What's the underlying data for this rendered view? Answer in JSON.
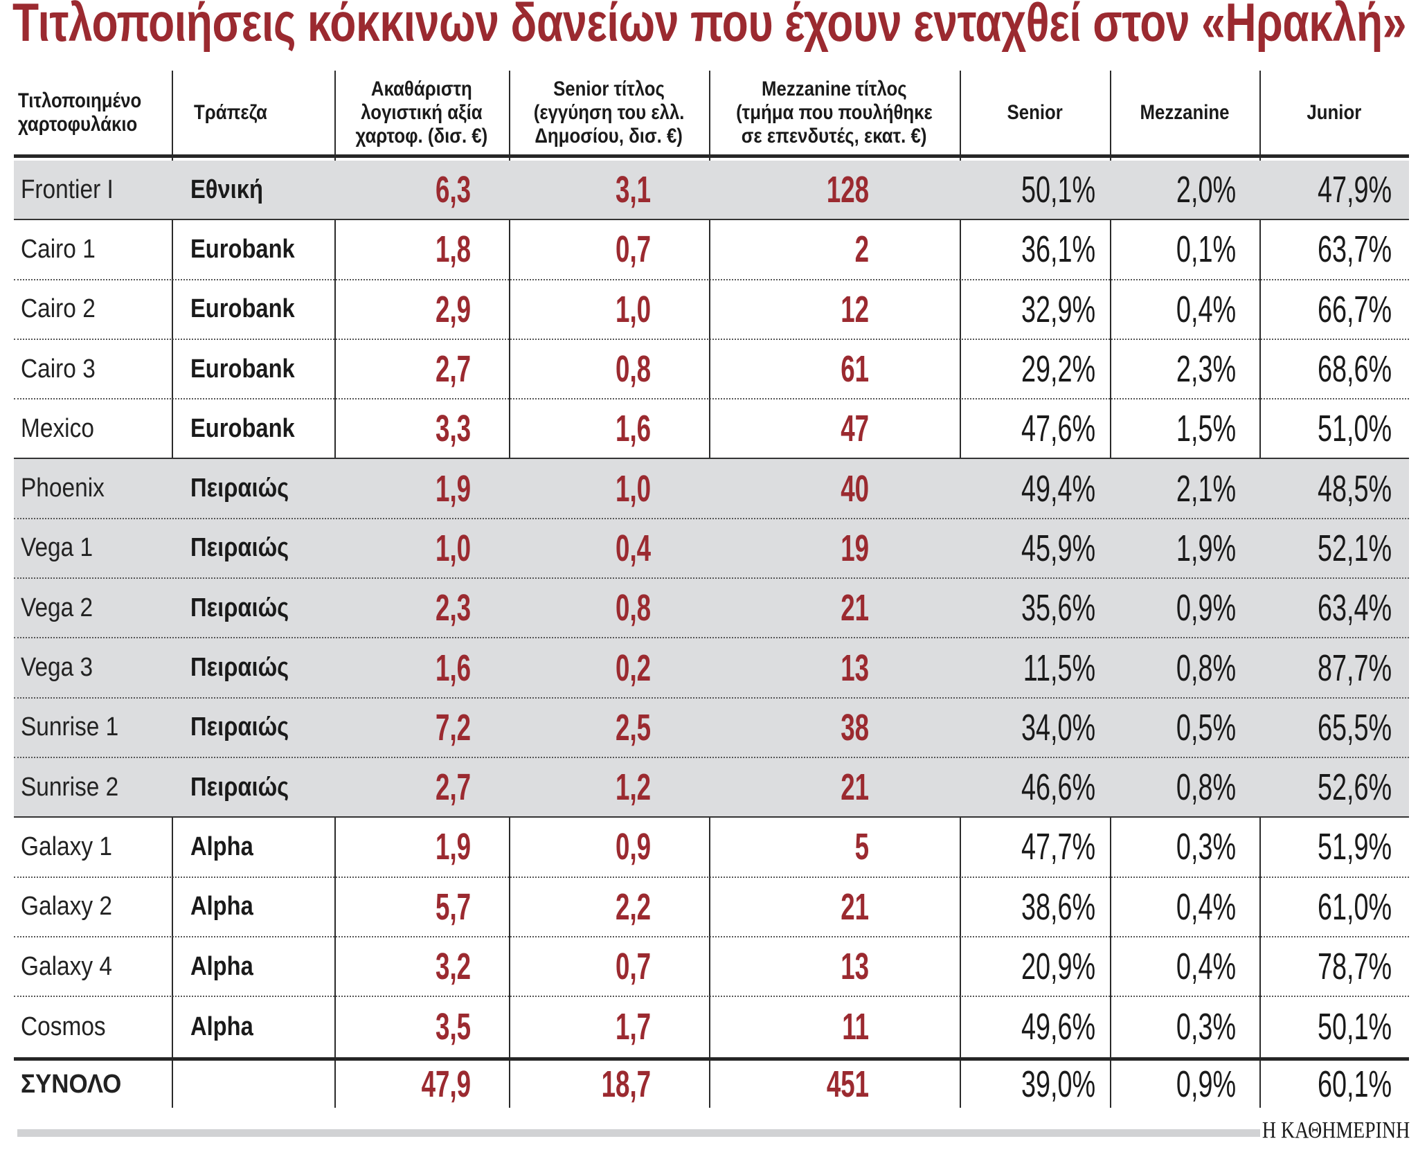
{
  "title": "Τιτλοποιήσεις κόκκινων δανείων που έχουν ενταχθεί στον «Ηρακλή»",
  "colors": {
    "accent_red": "#9b2a30",
    "row_shade": "#dcdddf",
    "text": "#1a1a1a",
    "footer_bar": "#d1d2d4"
  },
  "headers": {
    "portfolio": [
      "Τιτλοποιημένο",
      "χαρτοφυλάκιο"
    ],
    "bank": [
      "Τράπεζα"
    ],
    "gross": [
      "Ακαθάριστη",
      "λογιστική αξία",
      "χαρτοφ. (δισ. €)"
    ],
    "senior_title": [
      "Senior τίτλος",
      "(εγγύηση του ελλ.",
      "Δημοσίου, δισ. €)"
    ],
    "mezz_title": [
      "Mezzanine τίτλος",
      "(τμήμα που πουλήθηκε",
      "σε επενδυτές, εκατ. €)"
    ],
    "senior_pct": [
      "Senior"
    ],
    "mezz_pct": [
      "Mezzanine"
    ],
    "junior_pct": [
      "Junior"
    ]
  },
  "rows": [
    {
      "name": "Frontier I",
      "bank": "Εθνική",
      "gross": "6,3",
      "senior": "3,1",
      "mezz": "128",
      "senior_pct": "50,1%",
      "mezz_pct": "2,0%",
      "junior_pct": "47,9%"
    },
    {
      "name": "Cairo 1",
      "bank": "Eurobank",
      "gross": "1,8",
      "senior": "0,7",
      "mezz": "2",
      "senior_pct": "36,1%",
      "mezz_pct": "0,1%",
      "junior_pct": "63,7%"
    },
    {
      "name": "Cairo 2",
      "bank": "Eurobank",
      "gross": "2,9",
      "senior": "1,0",
      "mezz": "12",
      "senior_pct": "32,9%",
      "mezz_pct": "0,4%",
      "junior_pct": "66,7%"
    },
    {
      "name": "Cairo 3",
      "bank": "Eurobank",
      "gross": "2,7",
      "senior": "0,8",
      "mezz": "61",
      "senior_pct": "29,2%",
      "mezz_pct": "2,3%",
      "junior_pct": "68,6%"
    },
    {
      "name": "Mexico",
      "bank": "Eurobank",
      "gross": "3,3",
      "senior": "1,6",
      "mezz": "47",
      "senior_pct": "47,6%",
      "mezz_pct": "1,5%",
      "junior_pct": "51,0%"
    },
    {
      "name": "Phoenix",
      "bank": "Πειραιώς",
      "gross": "1,9",
      "senior": "1,0",
      "mezz": "40",
      "senior_pct": "49,4%",
      "mezz_pct": "2,1%",
      "junior_pct": "48,5%"
    },
    {
      "name": "Vega 1",
      "bank": "Πειραιώς",
      "gross": "1,0",
      "senior": "0,4",
      "mezz": "19",
      "senior_pct": "45,9%",
      "mezz_pct": "1,9%",
      "junior_pct": "52,1%"
    },
    {
      "name": "Vega 2",
      "bank": "Πειραιώς",
      "gross": "2,3",
      "senior": "0,8",
      "mezz": "21",
      "senior_pct": "35,6%",
      "mezz_pct": "0,9%",
      "junior_pct": "63,4%"
    },
    {
      "name": "Vega 3",
      "bank": "Πειραιώς",
      "gross": "1,6",
      "senior": "0,2",
      "mezz": "13",
      "senior_pct": "11,5%",
      "mezz_pct": "0,8%",
      "junior_pct": "87,7%"
    },
    {
      "name": "Sunrise 1",
      "bank": "Πειραιώς",
      "gross": "7,2",
      "senior": "2,5",
      "mezz": "38",
      "senior_pct": "34,0%",
      "mezz_pct": "0,5%",
      "junior_pct": "65,5%"
    },
    {
      "name": "Sunrise 2",
      "bank": "Πειραιώς",
      "gross": "2,7",
      "senior": "1,2",
      "mezz": "21",
      "senior_pct": "46,6%",
      "mezz_pct": "0,8%",
      "junior_pct": "52,6%"
    },
    {
      "name": "Galaxy 1",
      "bank": "Alpha",
      "gross": "1,9",
      "senior": "0,9",
      "mezz": "5",
      "senior_pct": "47,7%",
      "mezz_pct": "0,3%",
      "junior_pct": "51,9%"
    },
    {
      "name": "Galaxy 2",
      "bank": "Alpha",
      "gross": "5,7",
      "senior": "2,2",
      "mezz": "21",
      "senior_pct": "38,6%",
      "mezz_pct": "0,4%",
      "junior_pct": "61,0%"
    },
    {
      "name": "Galaxy 4",
      "bank": "Alpha",
      "gross": "3,2",
      "senior": "0,7",
      "mezz": "13",
      "senior_pct": "20,9%",
      "mezz_pct": "0,4%",
      "junior_pct": "78,7%"
    },
    {
      "name": "Cosmos",
      "bank": "Alpha",
      "gross": "3,5",
      "senior": "1,7",
      "mezz": "11",
      "senior_pct": "49,6%",
      "mezz_pct": "0,3%",
      "junior_pct": "50,1%"
    }
  ],
  "total": {
    "name": "ΣΥΝΟΛΟ",
    "bank": "",
    "gross": "47,9",
    "senior": "18,7",
    "mezz": "451",
    "senior_pct": "39,0%",
    "mezz_pct": "0,9%",
    "junior_pct": "60,1%"
  },
  "source": "Η ΚΑΘΗΜΕΡΙΝΗ"
}
